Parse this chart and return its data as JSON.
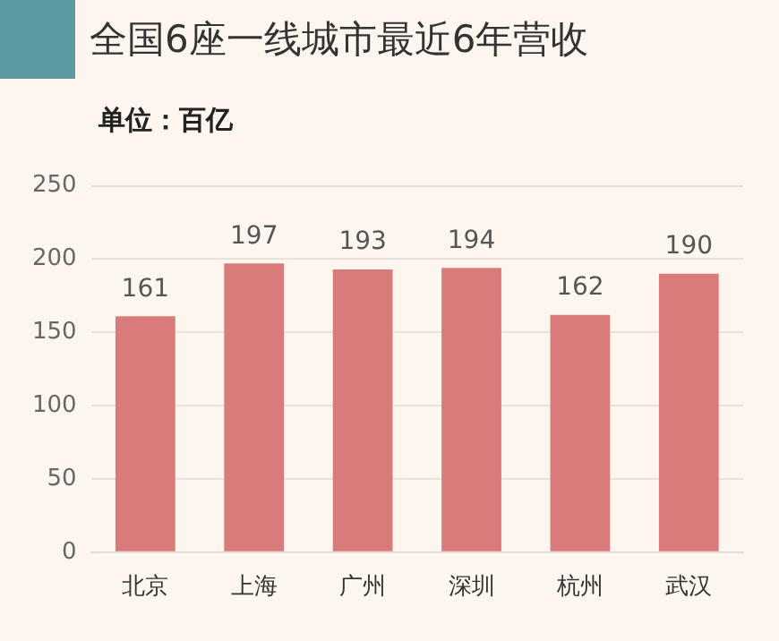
{
  "chart_data": {
    "type": "bar",
    "title": "全国6座一线城市最近6年营收",
    "subtitle": "单位：百亿",
    "categories": [
      "北京",
      "上海",
      "广州",
      "深圳",
      "杭州",
      "武汉"
    ],
    "values": [
      161,
      197,
      193,
      194,
      162,
      190
    ],
    "color": "#d97b7b",
    "ylim": [
      0,
      250
    ],
    "yticks": [
      0,
      50,
      100,
      150,
      200,
      250
    ],
    "grid": "y",
    "data_labels": true,
    "legend": false
  }
}
